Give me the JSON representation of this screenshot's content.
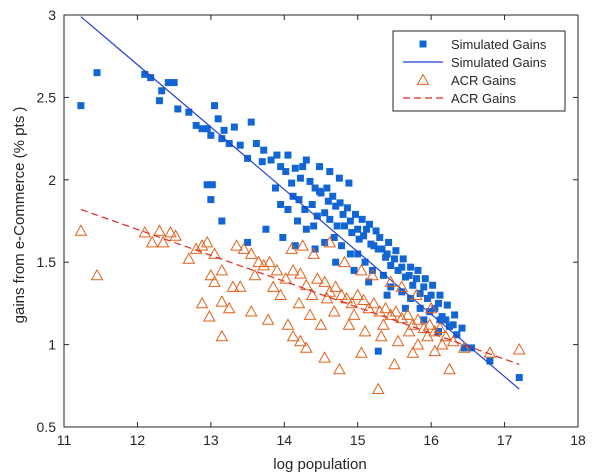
{
  "chart_data": {
    "type": "scatter",
    "title": "",
    "xlabel": "log population",
    "ylabel": "gains from e-Commerce (% pts )",
    "xlim": [
      11,
      18
    ],
    "ylim": [
      0.5,
      3
    ],
    "xticks": [
      11,
      12,
      13,
      14,
      15,
      16,
      17,
      18
    ],
    "yticks": [
      0.5,
      1,
      1.5,
      2,
      2.5,
      3
    ],
    "ytick_labels": [
      "0.5",
      "1",
      "1.5",
      "2",
      "2.5",
      "3"
    ],
    "grid": false,
    "legend_position": "top-right",
    "legend": [
      {
        "label": "Simulated Gains",
        "kind": "square-marker",
        "color": "#1266d4"
      },
      {
        "label": "Simulated Gains",
        "kind": "solid-line",
        "color": "#1f3fd6"
      },
      {
        "label": "ACR Gains",
        "kind": "triangle-marker",
        "color": "#e3611a"
      },
      {
        "label": "ACR Gains",
        "kind": "dashed-line",
        "color": "#e02b20"
      }
    ],
    "series": [
      {
        "name": "Simulated Gains",
        "kind": "scatter",
        "color": "#1266d4",
        "points": [
          [
            11.23,
            2.45
          ],
          [
            11.45,
            2.65
          ],
          [
            12.1,
            2.64
          ],
          [
            12.18,
            2.62
          ],
          [
            12.42,
            2.59
          ],
          [
            12.5,
            2.59
          ],
          [
            12.3,
            2.48
          ],
          [
            12.33,
            2.54
          ],
          [
            12.55,
            2.43
          ],
          [
            12.7,
            2.41
          ],
          [
            12.8,
            2.33
          ],
          [
            12.95,
            2.31
          ],
          [
            13.0,
            2.27
          ],
          [
            13.1,
            2.37
          ],
          [
            13.18,
            2.3
          ],
          [
            13.25,
            2.22
          ],
          [
            13.32,
            2.32
          ],
          [
            13.4,
            2.21
          ],
          [
            13.5,
            2.13
          ],
          [
            13.62,
            2.22
          ],
          [
            13.72,
            2.18
          ],
          [
            13.82,
            2.12
          ],
          [
            13.95,
            2.08
          ],
          [
            14.02,
            2.05
          ],
          [
            14.1,
            1.98
          ],
          [
            14.22,
            2.01
          ],
          [
            14.35,
            1.99
          ],
          [
            14.42,
            1.95
          ],
          [
            14.5,
            1.92
          ],
          [
            14.6,
            1.87
          ],
          [
            14.7,
            1.84
          ],
          [
            14.8,
            1.79
          ],
          [
            14.9,
            1.75
          ],
          [
            15.0,
            1.7
          ],
          [
            15.08,
            1.66
          ],
          [
            15.18,
            1.61
          ],
          [
            15.28,
            1.58
          ],
          [
            15.38,
            1.53
          ],
          [
            15.45,
            1.48
          ],
          [
            15.55,
            1.45
          ],
          [
            15.65,
            1.41
          ],
          [
            15.75,
            1.36
          ],
          [
            15.85,
            1.31
          ],
          [
            15.95,
            1.28
          ],
          [
            16.05,
            1.22
          ],
          [
            16.15,
            1.17
          ],
          [
            16.25,
            1.11
          ],
          [
            16.35,
            1.06
          ],
          [
            13.05,
            2.45
          ],
          [
            12.88,
            2.31
          ],
          [
            12.95,
            1.97
          ],
          [
            13.0,
            1.88
          ],
          [
            13.02,
            1.97
          ],
          [
            13.15,
            1.75
          ],
          [
            13.5,
            1.62
          ],
          [
            13.15,
            2.25
          ],
          [
            13.55,
            2.35
          ],
          [
            13.7,
            2.11
          ],
          [
            13.9,
            2.15
          ],
          [
            14.05,
            2.15
          ],
          [
            14.15,
            2.07
          ],
          [
            14.25,
            2.08
          ],
          [
            14.3,
            2.12
          ],
          [
            14.48,
            2.08
          ],
          [
            14.62,
            2.05
          ],
          [
            14.75,
            2.01
          ],
          [
            14.88,
            1.98
          ],
          [
            13.88,
            1.95
          ],
          [
            13.95,
            1.85
          ],
          [
            14.05,
            1.82
          ],
          [
            14.12,
            1.9
          ],
          [
            14.2,
            1.88
          ],
          [
            14.28,
            1.82
          ],
          [
            14.38,
            1.85
          ],
          [
            14.45,
            1.78
          ],
          [
            14.55,
            1.8
          ],
          [
            14.62,
            1.76
          ],
          [
            14.72,
            1.72
          ],
          [
            14.82,
            1.72
          ],
          [
            14.92,
            1.68
          ],
          [
            15.02,
            1.64
          ],
          [
            15.12,
            1.7
          ],
          [
            15.22,
            1.6
          ],
          [
            15.3,
            1.65
          ],
          [
            15.4,
            1.55
          ],
          [
            15.5,
            1.52
          ],
          [
            15.6,
            1.47
          ],
          [
            15.7,
            1.42
          ],
          [
            15.8,
            1.4
          ],
          [
            15.9,
            1.35
          ],
          [
            16.0,
            1.3
          ],
          [
            16.1,
            1.25
          ],
          [
            16.2,
            1.15
          ],
          [
            16.3,
            1.12
          ],
          [
            16.45,
            0.98
          ],
          [
            16.55,
            0.98
          ],
          [
            15.28,
            0.96
          ],
          [
            16.8,
            0.9
          ],
          [
            17.2,
            0.8
          ],
          [
            14.18,
            1.75
          ],
          [
            14.3,
            1.7
          ],
          [
            14.4,
            1.72
          ],
          [
            14.55,
            1.62
          ],
          [
            14.68,
            1.65
          ],
          [
            14.78,
            1.6
          ],
          [
            14.9,
            1.55
          ],
          [
            15.0,
            1.55
          ],
          [
            15.1,
            1.5
          ],
          [
            15.2,
            1.45
          ],
          [
            15.35,
            1.42
          ],
          [
            15.45,
            1.35
          ],
          [
            15.6,
            1.32
          ],
          [
            15.72,
            1.28
          ],
          [
            15.85,
            1.22
          ],
          [
            15.98,
            1.2
          ],
          [
            16.12,
            1.15
          ],
          [
            13.75,
            1.7
          ],
          [
            13.98,
            1.65
          ],
          [
            14.48,
            1.93
          ],
          [
            14.58,
            1.95
          ],
          [
            14.66,
            1.9
          ],
          [
            14.76,
            1.86
          ],
          [
            14.86,
            1.83
          ],
          [
            14.97,
            1.79
          ],
          [
            15.06,
            1.76
          ],
          [
            15.16,
            1.73
          ],
          [
            15.25,
            1.69
          ],
          [
            15.33,
            1.58
          ],
          [
            15.42,
            1.62
          ],
          [
            15.52,
            1.57
          ],
          [
            15.62,
            1.52
          ],
          [
            15.72,
            1.47
          ],
          [
            15.82,
            1.45
          ],
          [
            15.92,
            1.4
          ],
          [
            16.02,
            1.36
          ],
          [
            16.12,
            1.3
          ],
          [
            16.22,
            1.24
          ],
          [
            16.32,
            1.18
          ],
          [
            16.42,
            1.1
          ],
          [
            14.15,
            1.6
          ],
          [
            14.42,
            1.58
          ],
          [
            14.7,
            1.5
          ],
          [
            14.95,
            1.45
          ],
          [
            15.15,
            1.38
          ],
          [
            15.4,
            1.3
          ],
          [
            15.65,
            1.22
          ],
          [
            15.9,
            1.15
          ],
          [
            16.1,
            1.08
          ]
        ]
      },
      {
        "name": "Simulated Gains",
        "kind": "fit-line",
        "color": "#1f3fd6",
        "points": [
          [
            11.23,
            2.99
          ],
          [
            17.2,
            0.73
          ]
        ]
      },
      {
        "name": "ACR Gains",
        "kind": "scatter",
        "color": "#e3611a",
        "points": [
          [
            11.23,
            1.69
          ],
          [
            11.45,
            1.42
          ],
          [
            12.1,
            1.68
          ],
          [
            12.2,
            1.62
          ],
          [
            12.3,
            1.69
          ],
          [
            12.35,
            1.62
          ],
          [
            12.45,
            1.68
          ],
          [
            12.52,
            1.66
          ],
          [
            12.7,
            1.52
          ],
          [
            12.8,
            1.58
          ],
          [
            12.88,
            1.6
          ],
          [
            12.95,
            1.62
          ],
          [
            12.88,
            1.25
          ],
          [
            12.98,
            1.17
          ],
          [
            13.15,
            1.05
          ],
          [
            13.0,
            1.42
          ],
          [
            13.05,
            1.55
          ],
          [
            13.15,
            1.45
          ],
          [
            13.25,
            1.22
          ],
          [
            13.3,
            1.35
          ],
          [
            13.35,
            1.6
          ],
          [
            13.45,
            1.58
          ],
          [
            13.55,
            1.55
          ],
          [
            13.65,
            1.5
          ],
          [
            13.72,
            1.48
          ],
          [
            13.8,
            1.5
          ],
          [
            13.9,
            1.45
          ],
          [
            13.95,
            1.3
          ],
          [
            14.02,
            1.4
          ],
          [
            14.12,
            1.45
          ],
          [
            14.22,
            1.43
          ],
          [
            14.3,
            1.36
          ],
          [
            14.38,
            1.3
          ],
          [
            14.45,
            1.4
          ],
          [
            14.55,
            1.38
          ],
          [
            14.62,
            1.32
          ],
          [
            14.7,
            1.35
          ],
          [
            14.78,
            1.3
          ],
          [
            14.85,
            1.28
          ],
          [
            14.92,
            1.25
          ],
          [
            15.0,
            1.3
          ],
          [
            15.08,
            1.27
          ],
          [
            15.15,
            1.22
          ],
          [
            15.22,
            1.25
          ],
          [
            15.3,
            1.2
          ],
          [
            15.38,
            1.22
          ],
          [
            15.45,
            1.18
          ],
          [
            15.52,
            1.2
          ],
          [
            15.6,
            1.16
          ],
          [
            15.68,
            1.18
          ],
          [
            15.75,
            1.12
          ],
          [
            15.82,
            1.15
          ],
          [
            15.9,
            1.1
          ],
          [
            15.98,
            1.12
          ],
          [
            16.05,
            1.08
          ],
          [
            16.12,
            1.1
          ],
          [
            16.2,
            1.05
          ],
          [
            16.3,
            1.02
          ],
          [
            16.45,
            0.98
          ],
          [
            16.25,
            0.85
          ],
          [
            14.55,
            0.92
          ],
          [
            14.75,
            0.85
          ],
          [
            15.05,
            0.95
          ],
          [
            15.28,
            0.73
          ],
          [
            15.5,
            0.88
          ],
          [
            15.75,
            0.95
          ],
          [
            14.05,
            1.12
          ],
          [
            14.12,
            1.05
          ],
          [
            14.22,
            1.02
          ],
          [
            14.3,
            0.98
          ],
          [
            13.15,
            1.26
          ],
          [
            13.55,
            1.2
          ],
          [
            13.78,
            1.15
          ],
          [
            14.1,
            1.58
          ],
          [
            14.25,
            1.6
          ],
          [
            14.4,
            1.55
          ],
          [
            14.62,
            1.62
          ],
          [
            14.82,
            1.5
          ],
          [
            15.05,
            1.45
          ],
          [
            15.2,
            1.42
          ],
          [
            15.45,
            1.38
          ],
          [
            15.6,
            1.35
          ],
          [
            15.8,
            1.3
          ],
          [
            16.0,
            1.22
          ],
          [
            14.35,
            1.18
          ],
          [
            14.5,
            1.12
          ],
          [
            14.68,
            1.2
          ],
          [
            14.88,
            1.12
          ],
          [
            15.1,
            1.08
          ],
          [
            15.32,
            1.05
          ],
          [
            15.55,
            1.02
          ],
          [
            15.82,
            1.0
          ],
          [
            16.05,
            0.96
          ],
          [
            16.8,
            0.95
          ],
          [
            17.2,
            0.97
          ],
          [
            13.05,
            1.38
          ],
          [
            13.4,
            1.35
          ],
          [
            13.6,
            1.42
          ],
          [
            13.85,
            1.35
          ],
          [
            14.2,
            1.25
          ],
          [
            14.58,
            1.28
          ],
          [
            14.95,
            1.18
          ],
          [
            15.35,
            1.12
          ],
          [
            15.7,
            1.08
          ],
          [
            15.95,
            1.05
          ],
          [
            16.15,
            1.0
          ]
        ]
      },
      {
        "name": "ACR Gains",
        "kind": "fit-line",
        "color": "#e02b20",
        "points": [
          [
            11.23,
            1.82
          ],
          [
            17.2,
            0.88
          ]
        ]
      }
    ]
  }
}
